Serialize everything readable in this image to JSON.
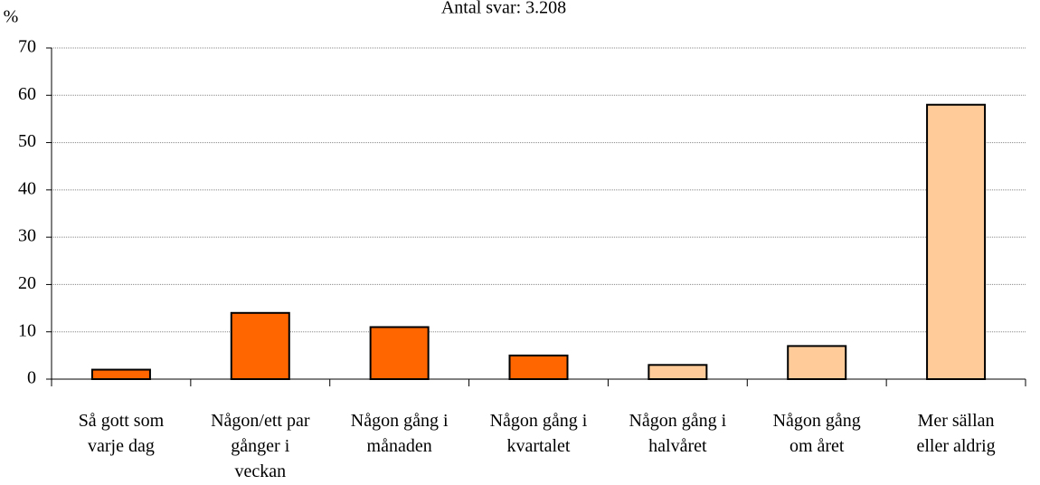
{
  "chart_data": {
    "type": "bar",
    "title": "Antal svar: 3.208",
    "ylabel": "%",
    "categories": [
      "Så gott som\nvarje dag",
      "Någon/ett par\ngånger i\nveckan",
      "Någon gång i\nmånaden",
      "Någon gång i\nkvartalet",
      "Någon gång i\nhalvåret",
      "Någon gång\nom året",
      "Mer sällan\neller aldrig"
    ],
    "values": [
      2,
      14,
      11,
      5,
      3,
      7,
      58
    ],
    "colors": [
      "#ff6600",
      "#ff6600",
      "#ff6600",
      "#ff6600",
      "#ffcc99",
      "#ffcc99",
      "#ffcc99"
    ],
    "ylim": [
      0,
      70
    ],
    "yticks": [
      0,
      10,
      20,
      30,
      40,
      50,
      60,
      70
    ],
    "grid": true
  }
}
